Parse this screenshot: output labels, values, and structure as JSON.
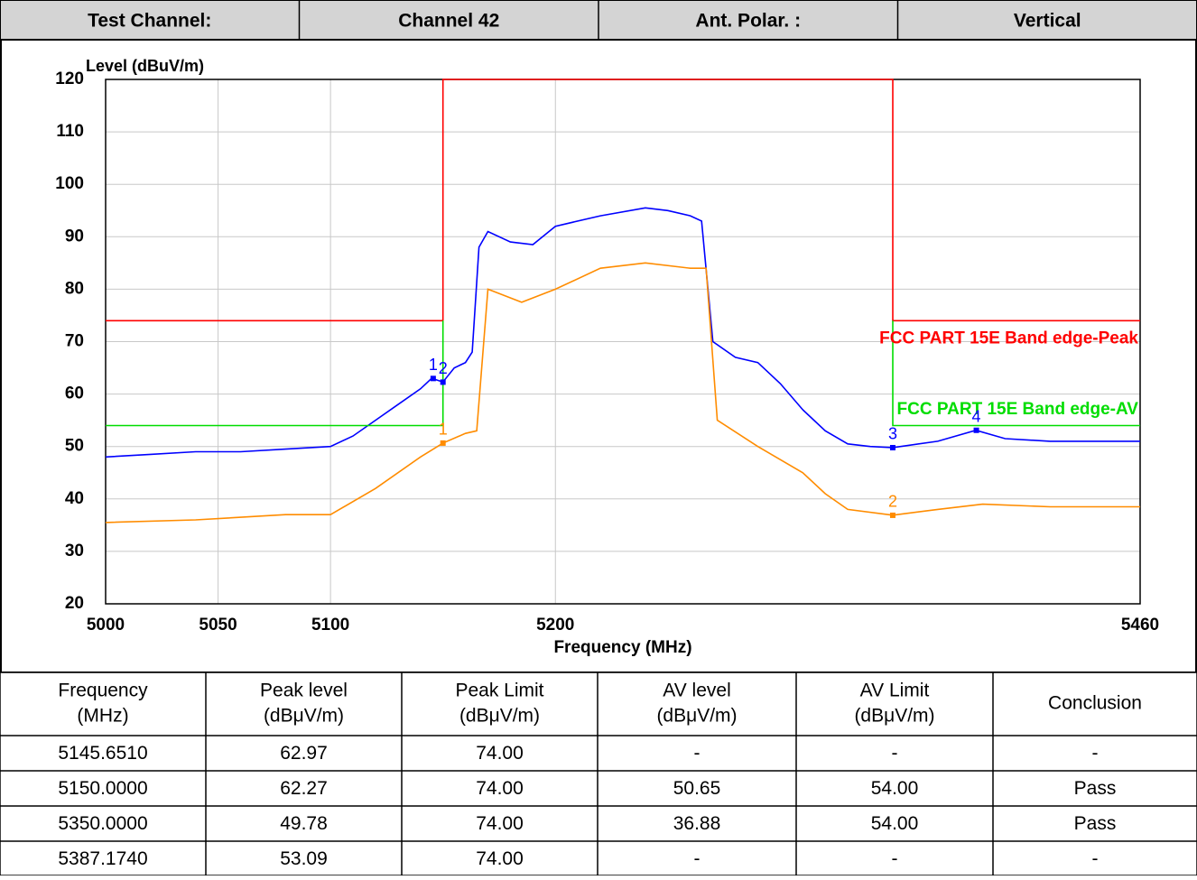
{
  "header": {
    "cells": [
      "Test Channel:",
      "Channel 42",
      "Ant. Polar. :",
      "Vertical"
    ]
  },
  "chart_data": {
    "type": "line",
    "ylabel": "Level (dBuV/m)",
    "xlabel": "Frequency (MHz)",
    "xlim": [
      5000,
      5460
    ],
    "xticks": [
      5000,
      5050,
      5100,
      5200,
      5460
    ],
    "ylim": [
      20,
      120
    ],
    "yticks": [
      20,
      30,
      40,
      50,
      60,
      70,
      80,
      90,
      100,
      110,
      120
    ],
    "grid": true,
    "series": [
      {
        "color": "#0000ff",
        "x": [
          5000,
          5020,
          5040,
          5060,
          5080,
          5100,
          5110,
          5120,
          5130,
          5140,
          5145,
          5150,
          5155,
          5160,
          5163,
          5166,
          5170,
          5180,
          5190,
          5200,
          5220,
          5240,
          5250,
          5260,
          5265,
          5270,
          5280,
          5290,
          5300,
          5310,
          5320,
          5330,
          5340,
          5350,
          5370,
          5387,
          5400,
          5420,
          5440,
          5460
        ],
        "values": [
          48,
          48.5,
          49,
          49,
          49.5,
          50,
          52,
          55,
          58,
          61,
          63,
          62.3,
          65,
          66,
          68,
          88,
          91,
          89,
          88.5,
          92,
          94,
          95.5,
          95,
          94,
          93,
          70,
          67,
          66,
          62,
          57,
          53,
          50.5,
          50,
          49.8,
          51,
          53.1,
          51.5,
          51,
          51,
          51
        ]
      },
      {
        "color": "#ff8c00",
        "x": [
          5000,
          5040,
          5080,
          5100,
          5120,
          5140,
          5150,
          5160,
          5165,
          5170,
          5185,
          5200,
          5220,
          5240,
          5260,
          5267,
          5272,
          5290,
          5310,
          5320,
          5330,
          5350,
          5370,
          5390,
          5420,
          5460
        ],
        "values": [
          35.5,
          36,
          37,
          37,
          42,
          48,
          50.65,
          52.5,
          53,
          80,
          77.5,
          80,
          84,
          85,
          84,
          84,
          55,
          50,
          45,
          41,
          38,
          36.9,
          38,
          39,
          38.5,
          38.5
        ]
      },
      {
        "name": "FCC PART 15E Band edge-Peak",
        "color": "#ff0000",
        "x": [
          5000,
          5150,
          5150,
          5350,
          5350,
          5460
        ],
        "values": [
          74,
          74,
          120,
          120,
          74,
          74
        ]
      },
      {
        "name": "FCC PART 15E Band edge-AV",
        "color": "#00dd00",
        "x": [
          5000,
          5150,
          5150,
          5250,
          5350,
          5350,
          5460
        ],
        "values": [
          54,
          54,
          74,
          null,
          74,
          54,
          54
        ]
      }
    ],
    "markers": [
      {
        "label": "1",
        "x": 5145.651,
        "y": 62.97,
        "color": "#0000ff"
      },
      {
        "label": "2",
        "x": 5150,
        "y": 62.27,
        "color": "#0000ff"
      },
      {
        "label": "3",
        "x": 5350,
        "y": 49.78,
        "color": "#0000ff"
      },
      {
        "label": "4",
        "x": 5387.174,
        "y": 53.09,
        "color": "#0000ff"
      },
      {
        "label": "1",
        "x": 5150,
        "y": 50.65,
        "color": "#ff8c00"
      },
      {
        "label": "2",
        "x": 5350,
        "y": 36.88,
        "color": "#ff8c00"
      }
    ]
  },
  "table": {
    "header": [
      [
        "Frequency",
        "(MHz)"
      ],
      [
        "Peak level",
        "(dBμV/m)"
      ],
      [
        "Peak Limit",
        "(dBμV/m)"
      ],
      [
        "AV level",
        "(dBμV/m)"
      ],
      [
        "AV Limit",
        "(dBμV/m)"
      ],
      [
        "Conclusion"
      ]
    ],
    "rows": [
      [
        "5145.6510",
        "62.97",
        "74.00",
        "-",
        "-",
        "-"
      ],
      [
        "5150.0000",
        "62.27",
        "74.00",
        "50.65",
        "54.00",
        "Pass"
      ],
      [
        "5350.0000",
        "49.78",
        "74.00",
        "36.88",
        "54.00",
        "Pass"
      ],
      [
        "5387.1740",
        "53.09",
        "74.00",
        "-",
        "-",
        "-"
      ]
    ]
  }
}
